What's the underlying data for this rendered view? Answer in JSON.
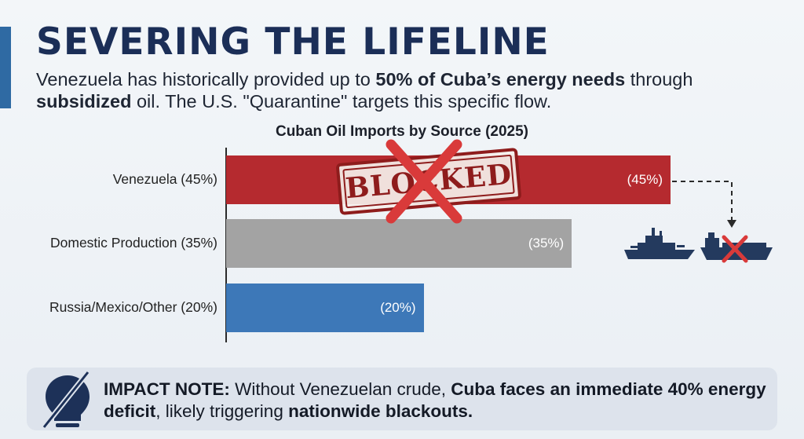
{
  "header": {
    "title": "SEVERING THE LIFELINE",
    "subtitle_parts": [
      {
        "text": "Venezuela has historically provided up to ",
        "bold": false
      },
      {
        "text": "50% of Cuba’s energy needs",
        "bold": true
      },
      {
        "text": " through ",
        "bold": false
      },
      {
        "text": "subsidized",
        "bold": true
      },
      {
        "text": " oil. The U.S. \"Quarantine\" targets this specific flow.",
        "bold": false
      }
    ]
  },
  "chart_data": {
    "type": "bar",
    "orientation": "horizontal",
    "title": "Cuban Oil Imports by Source (2025)",
    "categories": [
      "Venezuela (45%)",
      "Domestic Production (35%)",
      "Russia/Mexico/Other (20%)"
    ],
    "values": [
      45,
      35,
      20
    ],
    "value_labels": [
      "(45%)",
      "(35%)",
      "(20%)"
    ],
    "colors": [
      "#b52a2f",
      "#a3a3a3",
      "#3d78b8"
    ],
    "xlim": [
      0,
      45
    ],
    "xlabel": "",
    "ylabel": "",
    "annotations": [
      {
        "type": "stamp",
        "text": "BLOCKED",
        "target": "Venezuela (45%)"
      }
    ]
  },
  "colors": {
    "title": "#1b2e57",
    "accent": "#2f6aa3",
    "blocked_red": "#8e1c1c",
    "cross_red": "#d93a3a",
    "ship_navy": "#243a5e"
  },
  "icons": {
    "warship": "warship-icon",
    "tanker": "tanker-icon",
    "lightbulb": "lightbulb-off-icon"
  },
  "impact": {
    "parts": [
      {
        "text": "IMPACT NOTE:",
        "bold": true
      },
      {
        "text": " Without Venezuelan crude, ",
        "bold": false
      },
      {
        "text": "Cuba faces an immediate 40% energy deficit",
        "bold": true
      },
      {
        "text": ", likely triggering ",
        "bold": false
      },
      {
        "text": "nationwide blackouts",
        "bold": true
      },
      {
        "text": ".",
        "bold": true
      }
    ]
  }
}
